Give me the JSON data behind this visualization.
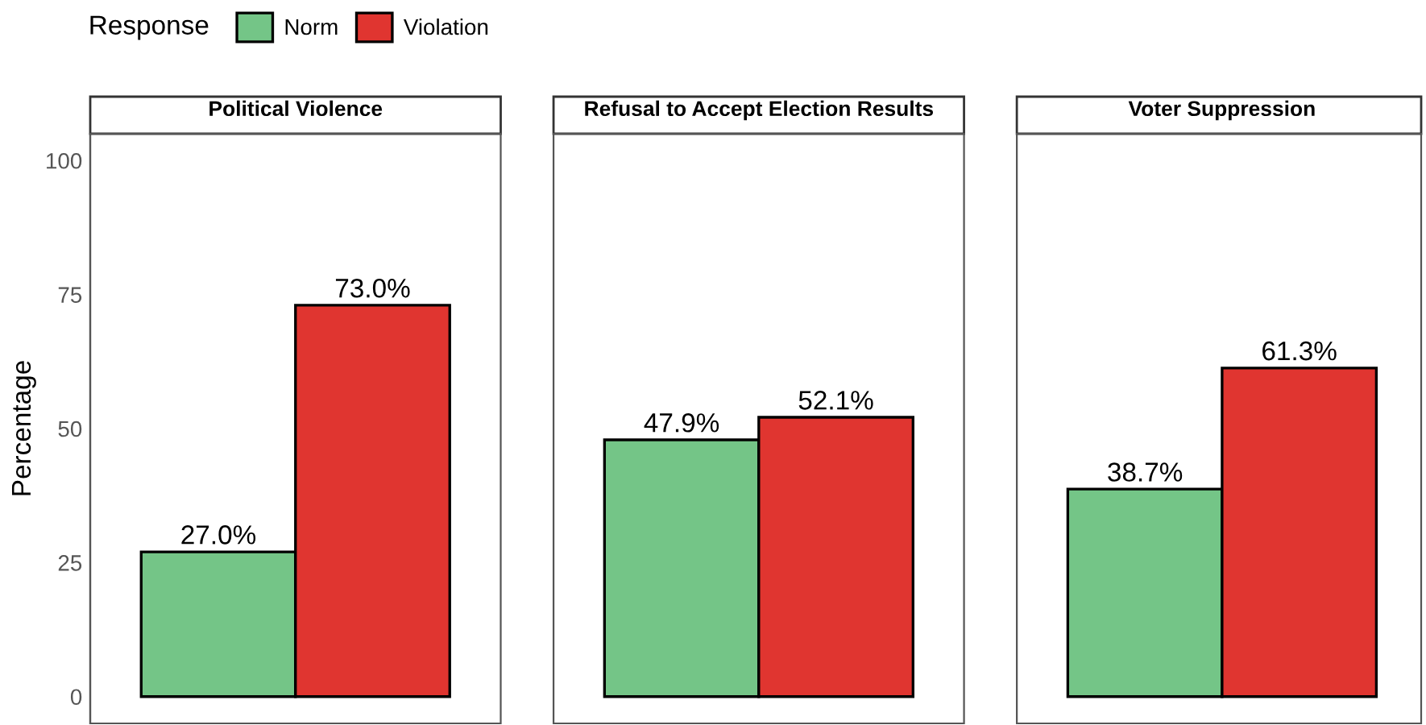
{
  "chart_data": {
    "type": "bar",
    "categories": [
      "Political Violence",
      "Refusal to Accept Election Results",
      "Voter Suppression"
    ],
    "ylabel": "Percentage",
    "legend": "top",
    "legend_title": "Response",
    "ylim": [
      -5,
      105
    ],
    "yticks": [
      0,
      25,
      50,
      75,
      100
    ],
    "grid": false,
    "data_labels": true,
    "series": [
      {
        "name": "Norm",
        "color": "#74c587",
        "values": [
          27.0,
          47.9,
          38.7
        ],
        "value_labels": [
          "27.0%",
          "47.9%",
          "38.7%"
        ]
      },
      {
        "name": "Violation",
        "color": "#e03530",
        "values": [
          73.0,
          52.1,
          61.3
        ],
        "value_labels": [
          "73.0%",
          "52.1%",
          "61.3%"
        ]
      }
    ]
  }
}
